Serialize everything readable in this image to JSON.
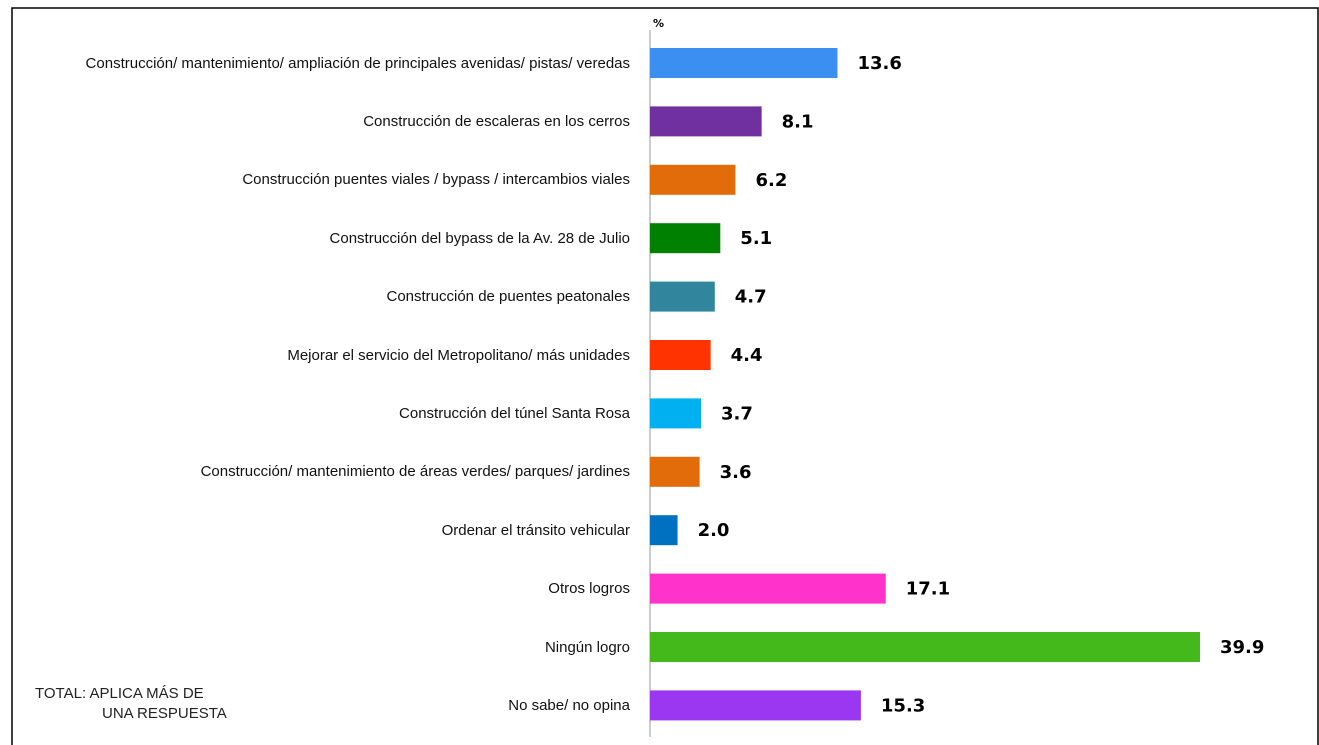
{
  "chart_data": {
    "type": "bar",
    "orientation": "horizontal",
    "unit_label": "%",
    "categories": [
      "Construcción/ mantenimiento/ ampliación de principales avenidas/ pistas/ veredas",
      "Construcción de escaleras en los cerros",
      "Construcción puentes viales / bypass / intercambios viales",
      "Construcción del bypass de la Av. 28 de Julio",
      "Construcción de puentes peatonales",
      "Mejorar el servicio del Metropolitano/ más unidades",
      "Construcción del túnel Santa Rosa",
      "Construcción/ mantenimiento de áreas verdes/ parques/ jardines",
      "Ordenar el tránsito vehicular",
      "Otros logros",
      "Ningún logro",
      "No sabe/ no opina"
    ],
    "values": [
      13.6,
      8.1,
      6.2,
      5.1,
      4.7,
      4.4,
      3.7,
      3.6,
      2.0,
      17.1,
      39.9,
      15.3
    ],
    "value_labels": [
      "13.6",
      "8.1",
      "6.2",
      "5.1",
      "4.7",
      "4.4",
      "3.7",
      "3.6",
      "2.0",
      "17.1",
      "39.9",
      "15.3"
    ],
    "colors": [
      "#3a8ff0",
      "#7030a0",
      "#e36c0a",
      "#008000",
      "#31859c",
      "#ff3300",
      "#00b0f0",
      "#e36c0a",
      "#0070c0",
      "#ff33cc",
      "#43b91b",
      "#9b37f0"
    ],
    "annotation": [
      "TOTAL: APLICA MÁS DE",
      "UNA RESPUESTA"
    ]
  }
}
